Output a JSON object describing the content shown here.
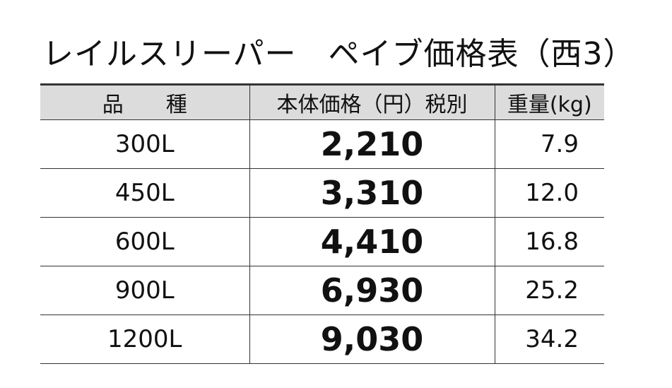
{
  "title": "レイルスリーパー　ペイブ価格表（西3）",
  "table": {
    "header": [
      "品　　種",
      "本体価格（円）税別",
      "重量(kg)"
    ],
    "rows": [
      [
        "300L",
        "2,210",
        "7.9"
      ],
      [
        "450L",
        "3,310",
        "12.0"
      ],
      [
        "600L",
        "4,410",
        "16.8"
      ],
      [
        "900L",
        "6,930",
        "25.2"
      ],
      [
        "1200L",
        "9,030",
        "34.2"
      ]
    ]
  }
}
